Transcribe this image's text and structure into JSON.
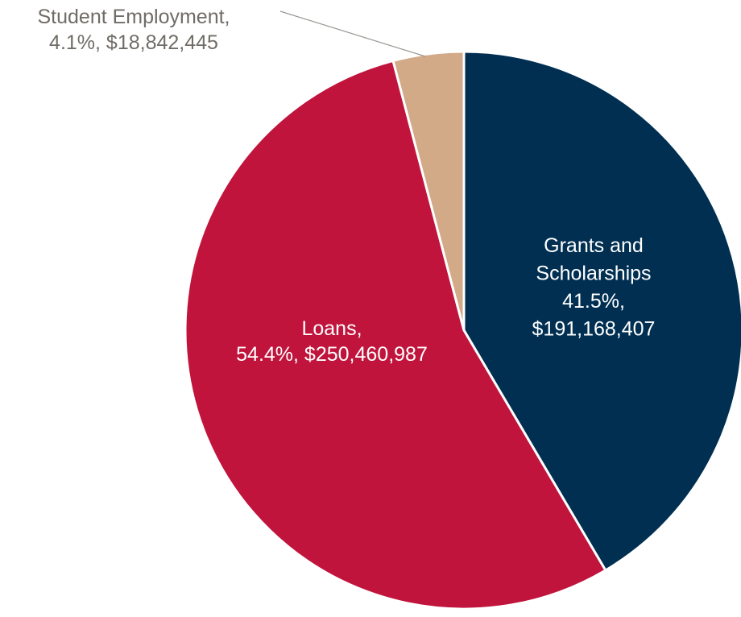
{
  "chart_data": {
    "type": "pie",
    "slices": [
      {
        "name": "Grants and Scholarships",
        "label_lines": [
          "Grants and",
          "Scholarships",
          "41.5%,",
          "$191,168,407"
        ],
        "percent": 41.5,
        "value": 191168407,
        "color": "#002f52",
        "label_color": "#ffffff"
      },
      {
        "name": "Loans",
        "label_lines": [
          "Loans,",
          "54.4%, $250,460,987"
        ],
        "percent": 54.4,
        "value": 250460987,
        "color": "#c0143c",
        "label_color": "#ffffff"
      },
      {
        "name": "Student Employment",
        "label_lines": [
          "Student Employment,",
          "4.1%, $18,842,445"
        ],
        "percent": 4.1,
        "value": 18842445,
        "color": "#d2aa87",
        "label_color": "#706c66"
      }
    ],
    "start_angle": "12 o'clock",
    "direction": "clockwise",
    "legend": "none",
    "leader_line_color": "#9a9590"
  }
}
